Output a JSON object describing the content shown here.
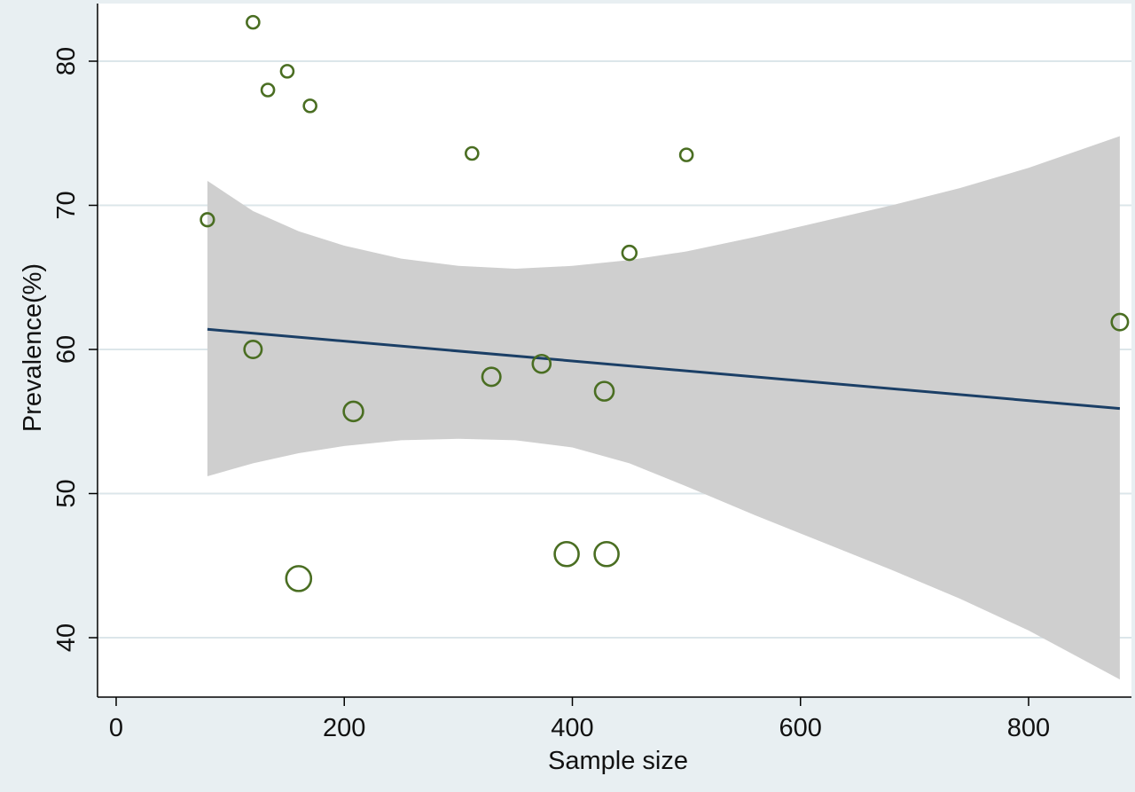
{
  "chart_data": {
    "type": "scatter",
    "title": "",
    "xlabel": "Sample size",
    "ylabel": "Prevalence(%)",
    "xlim": [
      -20,
      880
    ],
    "ylim": [
      36,
      85
    ],
    "x_ticks": [
      0,
      200,
      400,
      600,
      800
    ],
    "y_ticks": [
      40,
      50,
      60,
      70,
      80
    ],
    "x_tick_labels": [
      "0",
      "200",
      "400",
      "600",
      "800"
    ],
    "y_tick_labels": [
      "40",
      "50",
      "60",
      "70",
      "80"
    ],
    "grid": "horizontal",
    "legend": "none",
    "points": [
      {
        "x": 120,
        "y": 82.7
      },
      {
        "x": 150,
        "y": 79.3
      },
      {
        "x": 133,
        "y": 78.0
      },
      {
        "x": 170,
        "y": 76.9
      },
      {
        "x": 312,
        "y": 73.6
      },
      {
        "x": 500,
        "y": 73.5
      },
      {
        "x": 80,
        "y": 69.0
      },
      {
        "x": 450,
        "y": 66.7
      },
      {
        "x": 880,
        "y": 61.9
      },
      {
        "x": 120,
        "y": 60.0
      },
      {
        "x": 373,
        "y": 59.0
      },
      {
        "x": 329,
        "y": 58.1
      },
      {
        "x": 428,
        "y": 57.1
      },
      {
        "x": 208,
        "y": 55.7
      },
      {
        "x": 395,
        "y": 45.8
      },
      {
        "x": 430,
        "y": 45.8
      },
      {
        "x": 160,
        "y": 44.1
      }
    ],
    "fit_line": {
      "x": [
        80,
        880
      ],
      "y": [
        61.4,
        55.9
      ]
    },
    "confidence_band": {
      "x": [
        80,
        120,
        160,
        200,
        250,
        300,
        350,
        400,
        450,
        500,
        560,
        620,
        680,
        740,
        800,
        880
      ],
      "upper": [
        71.7,
        69.6,
        68.2,
        67.2,
        66.3,
        65.8,
        65.6,
        65.8,
        66.2,
        66.8,
        67.8,
        68.9,
        70.0,
        71.2,
        72.6,
        74.8
      ],
      "lower": [
        51.2,
        52.1,
        52.8,
        53.3,
        53.7,
        53.8,
        53.7,
        53.2,
        52.1,
        50.5,
        48.5,
        46.6,
        44.7,
        42.7,
        40.5,
        37.1
      ]
    },
    "colors": {
      "points": "#4a6e22",
      "fit_line": "#1b3f66",
      "band": "#cfcfcf",
      "grid": "#dce6ea",
      "plot_background": "#ffffff",
      "page_background": "#e8eff2"
    }
  }
}
